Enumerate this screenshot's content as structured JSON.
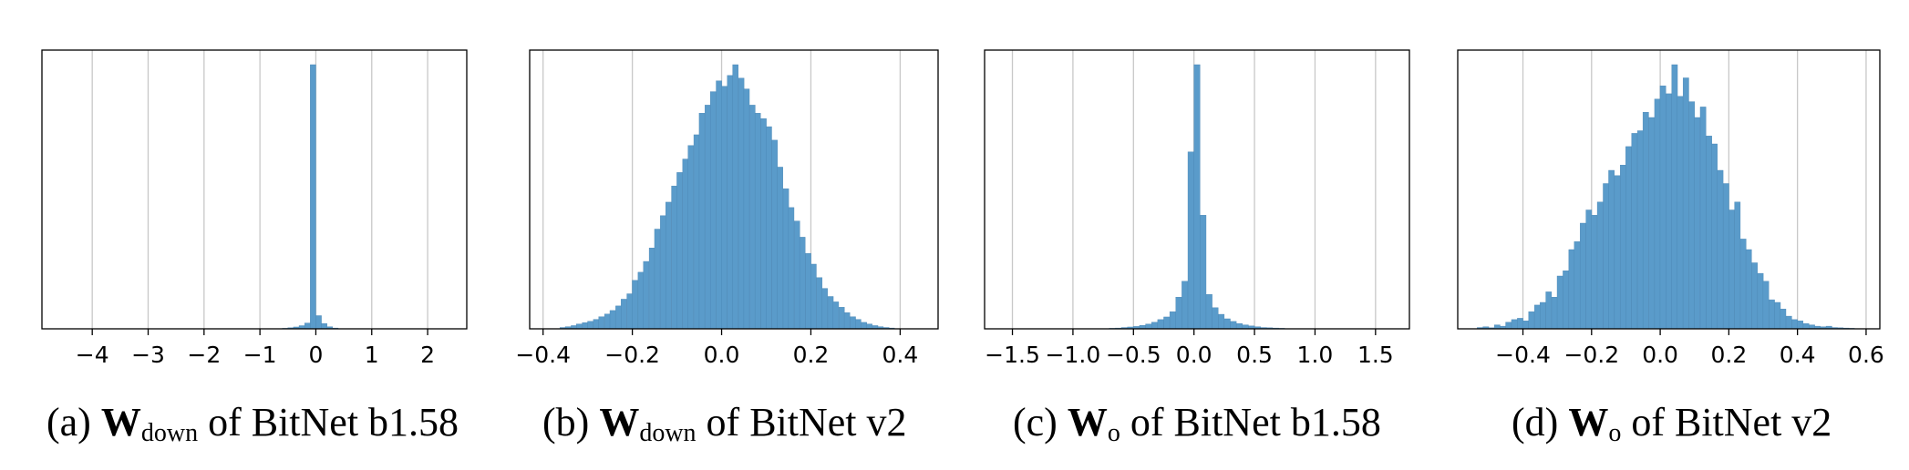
{
  "chart_data": [
    {
      "type": "bar",
      "panel_id": "a",
      "caption": {
        "prefix": "(a) ",
        "bold": "W",
        "sub": "down",
        "suffix": " of BitNet b1.58"
      },
      "xlim": [
        -4.9,
        2.7
      ],
      "xticks": [
        -4,
        -3,
        -2,
        -1,
        0,
        1,
        2
      ],
      "xtick_labels": [
        "−4",
        "−3",
        "−2",
        "−1",
        "0",
        "1",
        "2"
      ],
      "grid": true,
      "yaxis_visible": false,
      "bin_width": 0.1,
      "bin_centers": [
        -0.65,
        -0.55,
        -0.45,
        -0.35,
        -0.25,
        -0.15,
        -0.05,
        0.05,
        0.15,
        0.25,
        0.35,
        0.45
      ],
      "values": [
        0.1,
        0.2,
        0.4,
        0.7,
        1.2,
        2.2,
        100,
        5.0,
        2.0,
        0.8,
        0.3,
        0.1
      ]
    },
    {
      "type": "bar",
      "panel_id": "b",
      "caption": {
        "prefix": "(b) ",
        "bold": "W",
        "sub": "down",
        "suffix": " of BitNet v2"
      },
      "xlim": [
        -0.43,
        0.485
      ],
      "xticks": [
        -0.4,
        -0.2,
        0.0,
        0.2,
        0.4
      ],
      "xtick_labels": [
        "−0.4",
        "−0.2",
        "0.0",
        "0.2",
        "0.4"
      ],
      "grid": true,
      "yaxis_visible": false,
      "bin_width": 0.0125,
      "bin_centers": [
        -0.356,
        -0.344,
        -0.331,
        -0.319,
        -0.306,
        -0.294,
        -0.281,
        -0.269,
        -0.256,
        -0.244,
        -0.231,
        -0.219,
        -0.206,
        -0.194,
        -0.181,
        -0.169,
        -0.156,
        -0.144,
        -0.131,
        -0.119,
        -0.106,
        -0.094,
        -0.081,
        -0.069,
        -0.056,
        -0.044,
        -0.031,
        -0.019,
        -0.006,
        0.006,
        0.019,
        0.031,
        0.044,
        0.056,
        0.069,
        0.081,
        0.094,
        0.106,
        0.119,
        0.131,
        0.144,
        0.156,
        0.169,
        0.181,
        0.194,
        0.206,
        0.219,
        0.231,
        0.244,
        0.256,
        0.269,
        0.281,
        0.294,
        0.306,
        0.319,
        0.331,
        0.344,
        0.356,
        0.369,
        0.381
      ],
      "values": [
        0.5,
        0.8,
        1.2,
        1.8,
        2.3,
        2.8,
        3.5,
        4.5,
        5.5,
        6.8,
        8.5,
        11,
        13,
        18,
        21,
        25,
        30,
        37,
        42,
        47,
        53,
        58,
        63,
        68,
        72,
        80,
        83,
        88,
        92,
        90,
        94,
        98,
        93,
        89,
        83,
        80,
        78,
        75,
        70,
        60,
        52,
        45,
        40,
        34,
        28,
        24,
        19,
        15,
        12,
        10,
        8,
        6,
        4.5,
        3.5,
        2.4,
        1.8,
        1.2,
        0.8,
        0.5,
        0.3
      ]
    },
    {
      "type": "bar",
      "panel_id": "c",
      "caption": {
        "prefix": "(c) ",
        "bold": "W",
        "sub": "o",
        "suffix": " of BitNet b1.58"
      },
      "xlim": [
        -1.73,
        1.78
      ],
      "xticks": [
        -1.5,
        -1.0,
        -0.5,
        0.0,
        0.5,
        1.0,
        1.5
      ],
      "xtick_labels": [
        "−1.5",
        "−1.0",
        "−0.5",
        "0.0",
        "0.5",
        "1.0",
        "1.5"
      ],
      "grid": true,
      "yaxis_visible": false,
      "bin_width": 0.05,
      "bin_centers": [
        -0.675,
        -0.625,
        -0.575,
        -0.525,
        -0.475,
        -0.425,
        -0.375,
        -0.325,
        -0.275,
        -0.225,
        -0.175,
        -0.125,
        -0.075,
        -0.025,
        0.025,
        0.075,
        0.125,
        0.175,
        0.225,
        0.275,
        0.325,
        0.375,
        0.425,
        0.475,
        0.525,
        0.575,
        0.625,
        0.675,
        0.725
      ],
      "values": [
        0.2,
        0.3,
        0.5,
        0.7,
        0.9,
        1.3,
        1.8,
        2.5,
        3.5,
        4.5,
        6.5,
        12,
        18,
        67,
        100,
        43,
        13,
        8,
        5.5,
        3.8,
        2.8,
        2.0,
        1.5,
        1.1,
        0.8,
        0.5,
        0.4,
        0.3,
        0.2
      ]
    },
    {
      "type": "bar",
      "panel_id": "d",
      "caption": {
        "prefix": "(d) ",
        "bold": "W",
        "sub": "o",
        "suffix": " of BitNet v2"
      },
      "xlim": [
        -0.59,
        0.64
      ],
      "xticks": [
        -0.4,
        -0.2,
        0.0,
        0.2,
        0.4,
        0.6
      ],
      "xtick_labels": [
        "−0.4",
        "−0.2",
        "0.0",
        "0.2",
        "0.4",
        "0.6"
      ],
      "grid": true,
      "yaxis_visible": false,
      "bin_width": 0.0167,
      "bin_centers": [
        -0.525,
        -0.508,
        -0.492,
        -0.475,
        -0.458,
        -0.442,
        -0.425,
        -0.408,
        -0.392,
        -0.375,
        -0.358,
        -0.342,
        -0.325,
        -0.308,
        -0.292,
        -0.275,
        -0.258,
        -0.242,
        -0.225,
        -0.208,
        -0.192,
        -0.175,
        -0.158,
        -0.142,
        -0.125,
        -0.108,
        -0.092,
        -0.075,
        -0.058,
        -0.042,
        -0.025,
        -0.008,
        0.008,
        0.025,
        0.042,
        0.058,
        0.075,
        0.092,
        0.108,
        0.125,
        0.142,
        0.158,
        0.175,
        0.192,
        0.208,
        0.225,
        0.242,
        0.258,
        0.275,
        0.292,
        0.308,
        0.325,
        0.342,
        0.358,
        0.375,
        0.392,
        0.408,
        0.425,
        0.442,
        0.458,
        0.475,
        0.492,
        0.508,
        0.525,
        0.542,
        0.558,
        0.575
      ],
      "values": [
        0.5,
        0.8,
        0.4,
        1.5,
        1.0,
        2.5,
        3.5,
        4.0,
        3.0,
        6.5,
        9.0,
        10,
        14,
        12,
        20,
        22,
        30,
        33,
        40,
        45,
        43,
        48,
        55,
        60,
        58,
        62,
        69,
        74,
        75,
        82,
        80,
        87,
        92,
        89,
        100,
        88,
        95,
        86,
        80,
        84,
        73,
        70,
        60,
        55,
        45,
        48,
        34,
        30,
        25,
        21,
        18,
        11,
        10,
        7.5,
        4.8,
        3.5,
        3.0,
        2.0,
        1.5,
        1.0,
        0.8,
        1.0,
        0.5,
        0.4,
        0.3,
        0.2,
        0.1
      ]
    }
  ]
}
